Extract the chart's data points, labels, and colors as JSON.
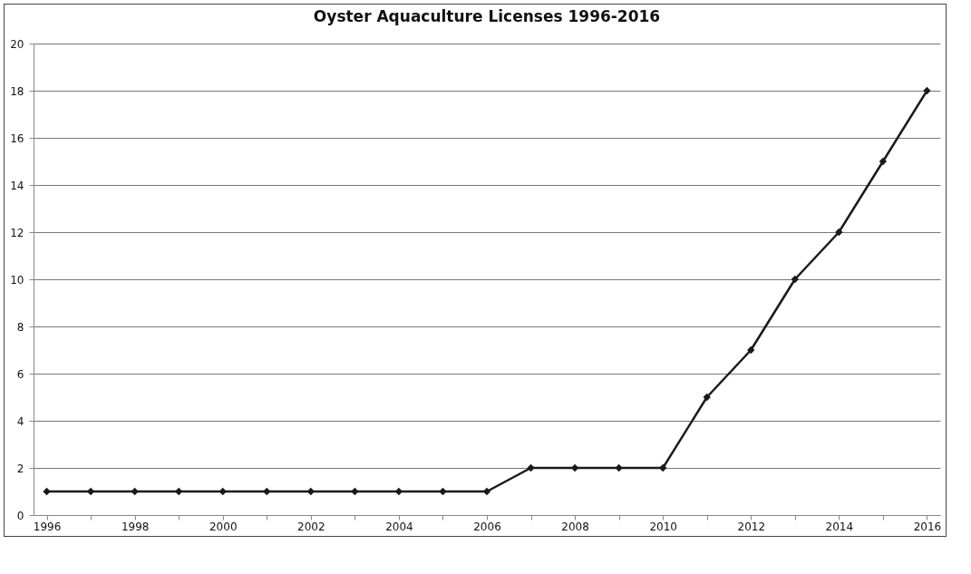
{
  "chart_data": {
    "type": "line",
    "title": "Oyster Aquaculture Licenses 1996-2016",
    "categories": [
      "1996",
      null,
      "1998",
      null,
      "2000",
      null,
      "2002",
      null,
      "2004",
      null,
      "2006",
      null,
      "2008",
      null,
      "2010",
      null,
      "2012",
      null,
      "2014",
      null,
      "2016"
    ],
    "series": [
      {
        "color": "#1a1a1a",
        "values": [
          1,
          1,
          1,
          1,
          1,
          1,
          1,
          1,
          1,
          1,
          1,
          2,
          2,
          2,
          2,
          5,
          7,
          10,
          12,
          15,
          18
        ]
      }
    ],
    "ylim": [
      0,
      20
    ],
    "yticks": [
      0,
      2,
      4,
      6,
      8,
      10,
      12,
      14,
      16,
      18,
      20
    ],
    "grid": "y",
    "marker": "diamond",
    "line_style": "solid"
  }
}
